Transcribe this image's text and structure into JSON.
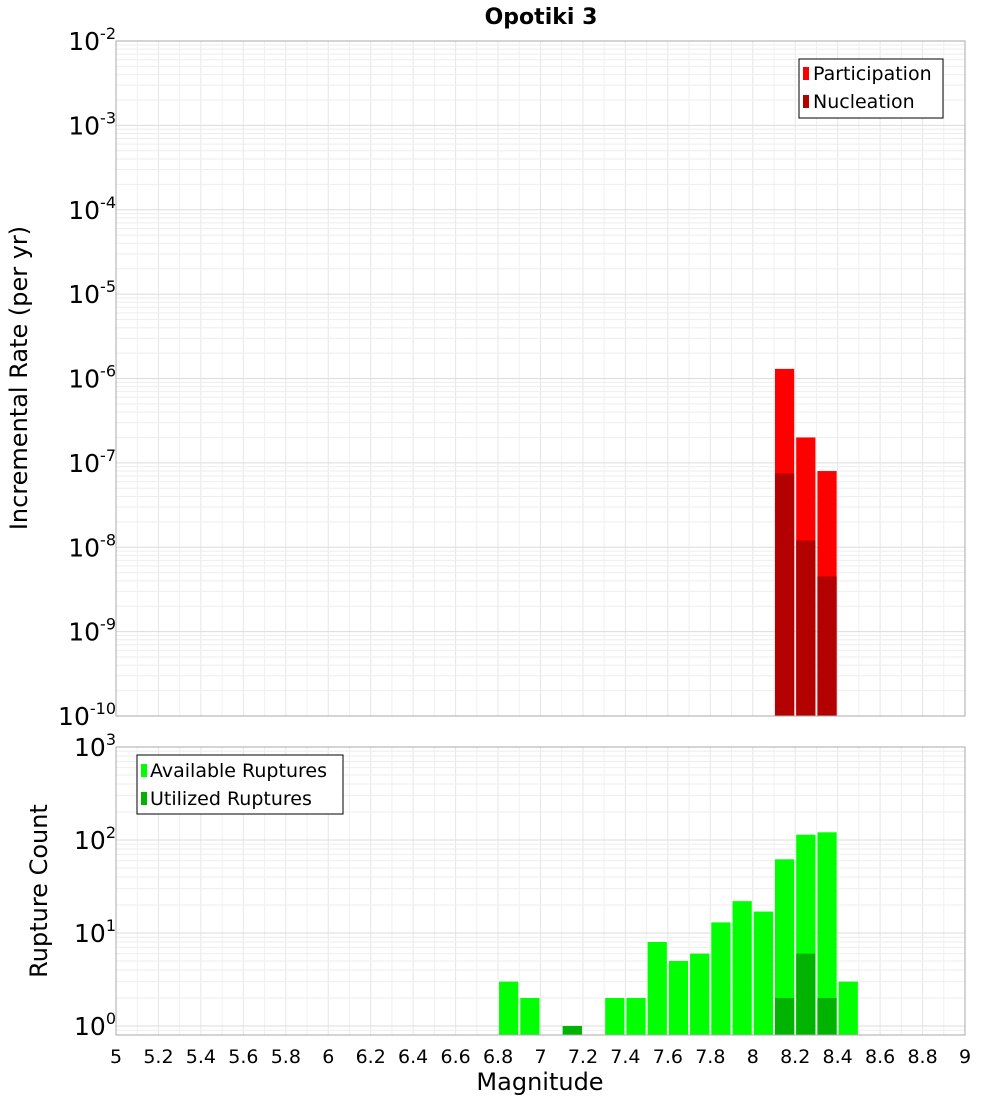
{
  "chart_data": [
    {
      "type": "bar",
      "title": "Opotiki 3",
      "xlabel": "Magnitude",
      "ylabel": "Incremental Rate (per yr)",
      "yscale": "log",
      "xlim": [
        5,
        9
      ],
      "ylim": [
        1e-10,
        0.01
      ],
      "grid": true,
      "legend_position": "top-right",
      "y_ticks": [
        {
          "base": "10",
          "exp": "-2"
        },
        {
          "base": "10",
          "exp": "-3"
        },
        {
          "base": "10",
          "exp": "-4"
        },
        {
          "base": "10",
          "exp": "-5"
        },
        {
          "base": "10",
          "exp": "-6"
        },
        {
          "base": "10",
          "exp": "-7"
        },
        {
          "base": "10",
          "exp": "-8"
        },
        {
          "base": "10",
          "exp": "-9"
        },
        {
          "base": "10",
          "exp": "-10"
        }
      ],
      "series": [
        {
          "name": "Participation",
          "color": "#ff0000",
          "x": [
            8.15,
            8.25,
            8.35
          ],
          "values": [
            1.3e-06,
            2e-07,
            8e-08
          ]
        },
        {
          "name": "Nucleation",
          "color": "#b30000",
          "x": [
            8.15,
            8.25,
            8.35
          ],
          "values": [
            7.5e-08,
            1.2e-08,
            4.5e-09
          ]
        }
      ]
    },
    {
      "type": "bar",
      "xlabel": "Magnitude",
      "ylabel": "Rupture Count",
      "yscale": "log",
      "xlim": [
        5,
        9
      ],
      "ylim": [
        0.8,
        1000
      ],
      "grid": true,
      "legend_position": "top-left",
      "x_ticks": [
        "5",
        "5.2",
        "5.4",
        "5.6",
        "5.8",
        "6",
        "6.2",
        "6.4",
        "6.6",
        "6.8",
        "7",
        "7.2",
        "7.4",
        "7.6",
        "7.8",
        "8",
        "8.2",
        "8.4",
        "8.6",
        "8.8",
        "9"
      ],
      "y_ticks": [
        {
          "base": "10",
          "exp": "3"
        },
        {
          "base": "10",
          "exp": "2"
        },
        {
          "base": "10",
          "exp": "1"
        },
        {
          "base": "10",
          "exp": "0"
        }
      ],
      "series": [
        {
          "name": "Available Ruptures",
          "color": "#00ff00",
          "x": [
            6.85,
            6.95,
            7.15,
            7.35,
            7.45,
            7.55,
            7.65,
            7.75,
            7.85,
            7.95,
            8.05,
            8.15,
            8.25,
            8.35,
            8.45
          ],
          "values": [
            3,
            2,
            1,
            2,
            2,
            8,
            5,
            6,
            13,
            22,
            17,
            62,
            114,
            121,
            3
          ]
        },
        {
          "name": "Utilized Ruptures",
          "color": "#00b300",
          "x": [
            7.15,
            8.15,
            8.25,
            8.35
          ],
          "values": [
            1,
            2,
            6,
            2
          ]
        }
      ]
    }
  ]
}
